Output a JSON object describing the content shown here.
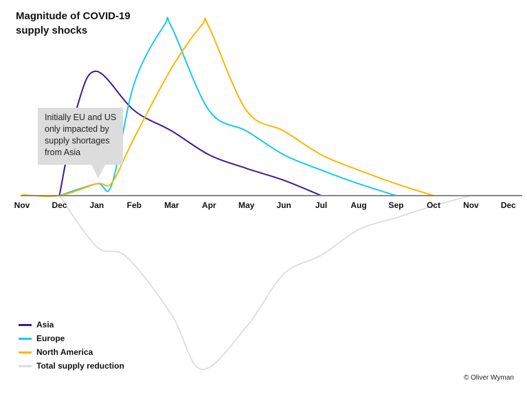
{
  "chart_data": {
    "type": "line",
    "title": "Magnitude of COVID-19 supply shocks",
    "xlabel": "",
    "ylabel": "",
    "categories": [
      "Nov",
      "Dec",
      "Jan",
      "Feb",
      "Mar",
      "Apr",
      "May",
      "Jun",
      "Jul",
      "Aug",
      "Sep",
      "Oct",
      "Nov",
      "Dec"
    ],
    "ylim": [
      -105,
      100
    ],
    "series": [
      {
        "name": "Asia",
        "color": "#3a1a9a",
        "x": [
          1,
          1.5,
          2,
          3,
          4,
          5,
          6,
          7,
          8
        ],
        "values": [
          0,
          54,
          73,
          50,
          38,
          24,
          16,
          9,
          0
        ]
      },
      {
        "name": "Europe",
        "color": "#16c8f0",
        "x": [
          1,
          2,
          2.4,
          3,
          3.8,
          4,
          5,
          6,
          7,
          8,
          9,
          10
        ],
        "values": [
          0,
          7,
          6.5,
          66,
          100,
          99,
          50,
          38,
          24,
          15,
          7,
          0
        ]
      },
      {
        "name": "North America",
        "color": "#ffb400",
        "x": [
          0,
          1,
          2,
          2.4,
          3,
          4,
          4.8,
          5,
          6,
          7,
          8,
          9,
          10,
          11
        ],
        "values": [
          0.5,
          0,
          7,
          7.5,
          34,
          75,
          100,
          99,
          50,
          38,
          24,
          15,
          7,
          0
        ]
      },
      {
        "name": "Total supply reduction",
        "color": "#dcdcdc",
        "x": [
          1,
          2,
          2.8,
          4,
          4.8,
          6,
          7,
          8,
          9,
          10,
          11,
          12
        ],
        "values": [
          0,
          -30,
          -36,
          -70,
          -102,
          -77,
          -46,
          -35,
          -20,
          -13,
          -6,
          0
        ]
      }
    ],
    "annotation": "Initially EU and US only impacted by supply shortages from Asia",
    "legend_position": "bottom-left"
  },
  "credit": "© Oliver Wyman"
}
